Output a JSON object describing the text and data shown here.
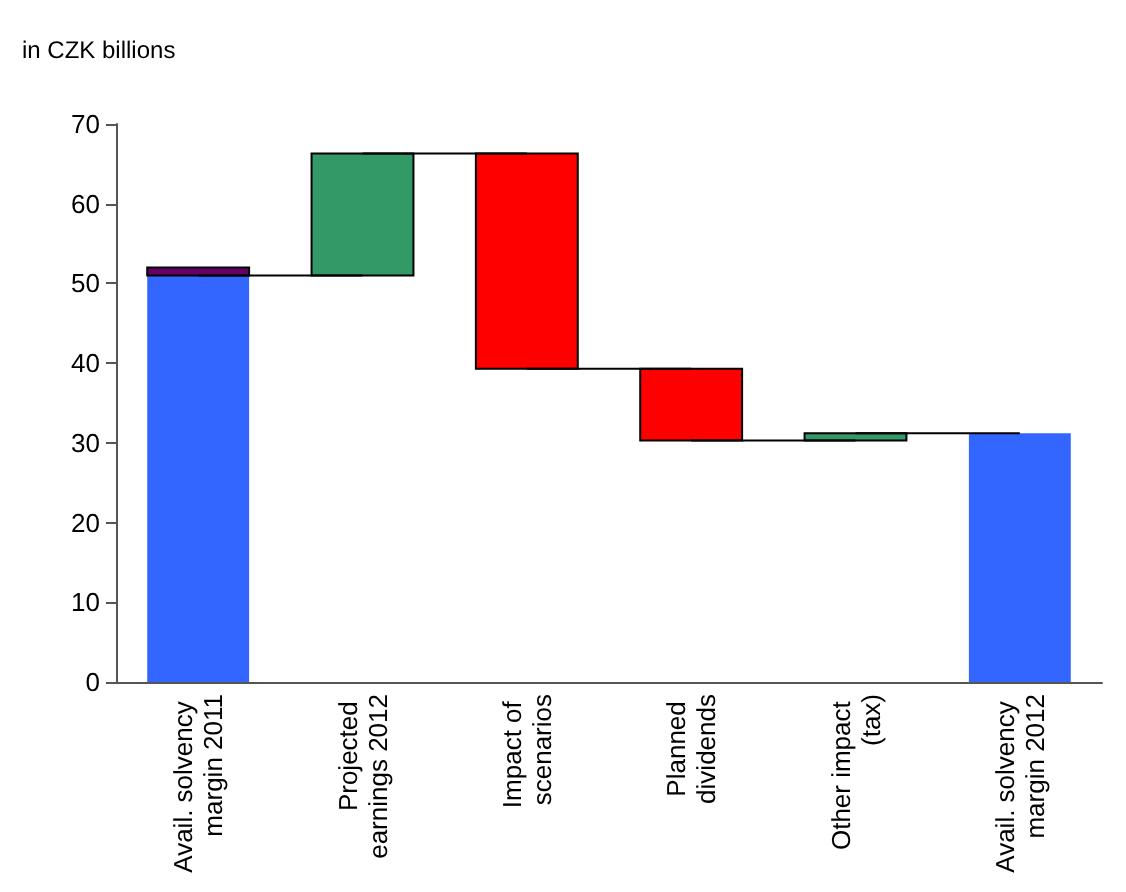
{
  "chart_data": {
    "type": "bar",
    "title": "in CZK billions",
    "categories": [
      "Avail. solvency margin 2011",
      "Projected earnings 2012",
      "Impact of scenarios",
      "Planned dividends",
      "Other impact (tax)",
      "Avail. solvency margin 2012"
    ],
    "series": [
      {
        "values": [
          51,
          15.3,
          -27,
          -9,
          0.9,
          31.2
        ],
        "base": [
          0,
          51,
          66.3,
          39.3,
          30.3,
          0
        ],
        "colors": [
          "#3366ff",
          "#339966",
          "#ff0000",
          "#ff0000",
          "#339966",
          "#3366ff"
        ]
      },
      {
        "values": [
          1,
          null,
          null,
          null,
          null,
          null
        ],
        "base": [
          51,
          null,
          null,
          null,
          null,
          null
        ],
        "color": "#660066"
      }
    ],
    "ylim": [
      0,
      70
    ],
    "yticks": [
      0,
      10,
      20,
      30,
      40,
      50,
      60,
      70
    ],
    "grid": false
  }
}
